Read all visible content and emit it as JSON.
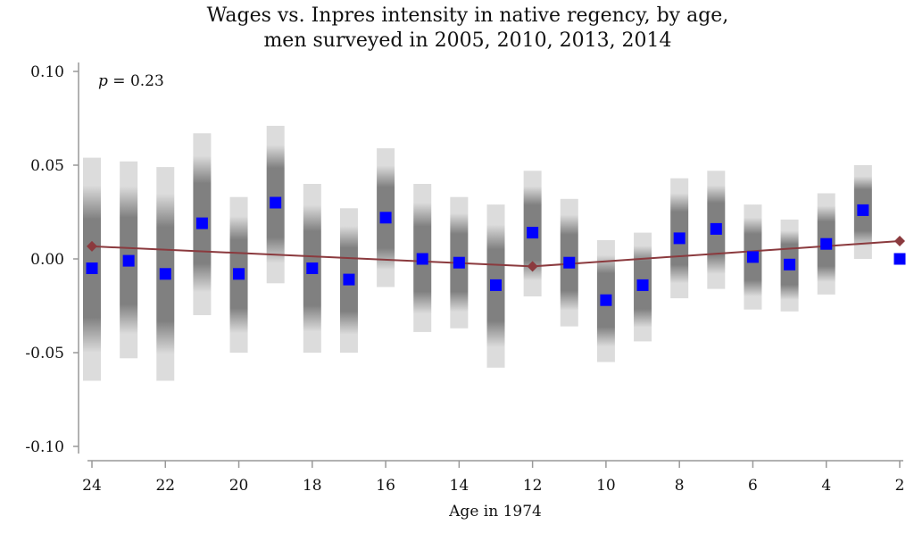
{
  "chart_data": {
    "type": "scatter",
    "title": [
      "Wages vs. Inpres intensity in native regency, by age,",
      "men surveyed in 2005, 2010, 2013, 2014"
    ],
    "xlabel": "Age in 1974",
    "ylabel": "",
    "annotation": {
      "italic": "p",
      "text": " = 0.23"
    },
    "xlim": [
      24,
      2
    ],
    "ylim": [
      -0.1,
      0.1
    ],
    "x_ticks": [
      24,
      22,
      20,
      18,
      16,
      14,
      12,
      10,
      8,
      6,
      4,
      2
    ],
    "y_ticks": [
      "0.10",
      "0.05",
      "0.00",
      "-0.05",
      "-0.10"
    ],
    "y_tick_values": [
      0.1,
      0.05,
      0.0,
      -0.05,
      -0.1
    ],
    "grid": false,
    "colors": {
      "point": "#0000ff",
      "fit": "#8b3a3e",
      "band_light": "#dcdcdc",
      "band_dark": "#808080"
    },
    "points": [
      {
        "age": 24,
        "estimate": -0.005,
        "ci": [
          -0.065,
          0.054
        ]
      },
      {
        "age": 23,
        "estimate": -0.001,
        "ci": [
          -0.053,
          0.052
        ]
      },
      {
        "age": 22,
        "estimate": -0.008,
        "ci": [
          -0.065,
          0.049
        ]
      },
      {
        "age": 21,
        "estimate": 0.019,
        "ci": [
          -0.03,
          0.067
        ]
      },
      {
        "age": 20,
        "estimate": -0.008,
        "ci": [
          -0.05,
          0.033
        ]
      },
      {
        "age": 19,
        "estimate": 0.03,
        "ci": [
          -0.013,
          0.071
        ]
      },
      {
        "age": 18,
        "estimate": -0.005,
        "ci": [
          -0.05,
          0.04
        ]
      },
      {
        "age": 17,
        "estimate": -0.011,
        "ci": [
          -0.05,
          0.027
        ]
      },
      {
        "age": 16,
        "estimate": 0.022,
        "ci": [
          -0.015,
          0.059
        ]
      },
      {
        "age": 15,
        "estimate": 0.0,
        "ci": [
          -0.039,
          0.04
        ]
      },
      {
        "age": 14,
        "estimate": -0.002,
        "ci": [
          -0.037,
          0.033
        ]
      },
      {
        "age": 13,
        "estimate": -0.014,
        "ci": [
          -0.058,
          0.029
        ]
      },
      {
        "age": 12,
        "estimate": 0.014,
        "ci": [
          -0.02,
          0.047
        ]
      },
      {
        "age": 11,
        "estimate": -0.002,
        "ci": [
          -0.036,
          0.032
        ]
      },
      {
        "age": 10,
        "estimate": -0.022,
        "ci": [
          -0.055,
          0.01
        ]
      },
      {
        "age": 9,
        "estimate": -0.014,
        "ci": [
          -0.044,
          0.014
        ]
      },
      {
        "age": 8,
        "estimate": 0.011,
        "ci": [
          -0.021,
          0.043
        ]
      },
      {
        "age": 7,
        "estimate": 0.016,
        "ci": [
          -0.016,
          0.047
        ]
      },
      {
        "age": 6,
        "estimate": 0.001,
        "ci": [
          -0.027,
          0.029
        ]
      },
      {
        "age": 5,
        "estimate": -0.003,
        "ci": [
          -0.028,
          0.021
        ]
      },
      {
        "age": 4,
        "estimate": 0.008,
        "ci": [
          -0.019,
          0.035
        ]
      },
      {
        "age": 3,
        "estimate": 0.026,
        "ci": [
          0.0,
          0.05
        ]
      },
      {
        "age": 2,
        "estimate": 0.0,
        "ci": null
      }
    ],
    "fit_line": [
      {
        "age": 24,
        "value": 0.0067
      },
      {
        "age": 12,
        "value": -0.004
      },
      {
        "age": 2,
        "value": 0.0095
      }
    ]
  }
}
